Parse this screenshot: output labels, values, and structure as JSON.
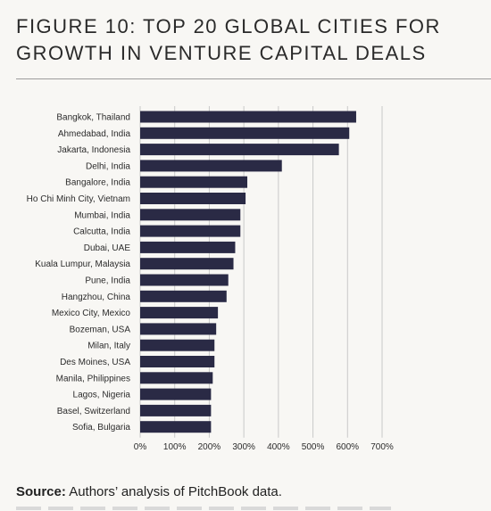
{
  "figure": {
    "title_line1": "FIGURE 10: TOP 20 GLOBAL CITIES FOR",
    "title_line2": "GROWTH IN VENTURE CAPITAL DEALS"
  },
  "source": {
    "label": "Source:",
    "text": " Authors’ analysis of PitchBook data."
  },
  "colors": {
    "bar": "#2a2a45",
    "grid": "#c9c9c9",
    "text": "#2b2b2b",
    "background": "#f8f7f4"
  },
  "chart_data": {
    "type": "bar",
    "orientation": "horizontal",
    "title": "FIGURE 10: TOP 20 GLOBAL CITIES FOR GROWTH IN VENTURE CAPITAL DEALS",
    "xlabel": "",
    "ylabel": "",
    "xlim": [
      0,
      700
    ],
    "x_ticks": [
      "0%",
      "100%",
      "200%",
      "300%",
      "400%",
      "500%",
      "600%",
      "700%"
    ],
    "grid": "vertical",
    "categories": [
      "Bangkok, Thailand",
      "Ahmedabad, India",
      "Jakarta, Indonesia",
      "Delhi, India",
      "Bangalore, India",
      "Ho Chi Minh City, Vietnam",
      "Mumbai, India",
      "Calcutta, India",
      "Dubai, UAE",
      "Kuala Lumpur, Malaysia",
      "Pune, India",
      "Hangzhou, China",
      "Mexico City, Mexico",
      "Bozeman, USA",
      "Milan, Italy",
      "Des Moines, USA",
      "Manila, Philippines",
      "Lagos, Nigeria",
      "Basel, Switzerland",
      "Sofia, Bulgaria"
    ],
    "values": [
      625,
      605,
      575,
      410,
      310,
      305,
      290,
      290,
      275,
      270,
      255,
      250,
      225,
      220,
      215,
      215,
      210,
      205,
      205,
      205
    ]
  }
}
